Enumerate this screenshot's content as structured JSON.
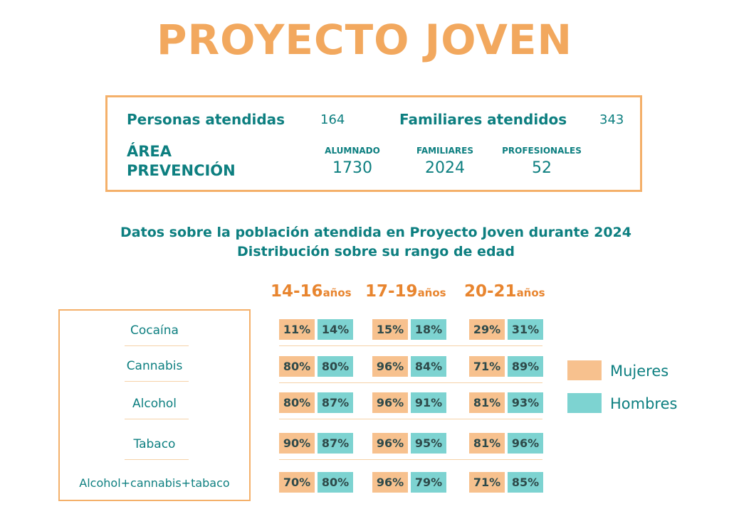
{
  "title": "PROYECTO JOVEN",
  "stats": {
    "personas_label": "Personas atendidas",
    "personas_value": "164",
    "familiares_label": "Familiares atendidos",
    "familiares_value": "343",
    "area_label_1": "ÁREA",
    "area_label_2": "PREVENCIÓN",
    "alumnado_label": "ALUMNADO",
    "alumnado_value": "1730",
    "fam_label": "FAMILIARES",
    "fam_value": "2024",
    "prof_label": "PROFESIONALES",
    "prof_value": "52"
  },
  "subtitle_1": "Datos sobre la población atendida en Proyecto Joven durante 2024",
  "subtitle_2": "Distribución sobre su rango de edad",
  "legend": {
    "mujeres": "Mujeres",
    "hombres": "Hombres",
    "mujeres_color": "#f7c18e",
    "hombres_color": "#7dd3d1"
  },
  "chart_data": {
    "type": "table",
    "categories": [
      "Cocaína",
      "Cannabis",
      "Alcohol",
      "Tabaco",
      "Alcohol+cannabis+tabaco"
    ],
    "age_groups": [
      {
        "range": "14-16",
        "unit": "años"
      },
      {
        "range": "17-19",
        "unit": "años"
      },
      {
        "range": "20-21",
        "unit": "años"
      }
    ],
    "series": [
      {
        "name": "Mujeres",
        "values": [
          [
            11,
            15,
            29
          ],
          [
            80,
            96,
            71
          ],
          [
            80,
            96,
            81
          ],
          [
            90,
            96,
            81
          ],
          [
            70,
            96,
            71
          ]
        ]
      },
      {
        "name": "Hombres",
        "values": [
          [
            14,
            18,
            31
          ],
          [
            80,
            84,
            89
          ],
          [
            87,
            91,
            93
          ],
          [
            87,
            95,
            96
          ],
          [
            80,
            79,
            85
          ]
        ]
      }
    ]
  }
}
